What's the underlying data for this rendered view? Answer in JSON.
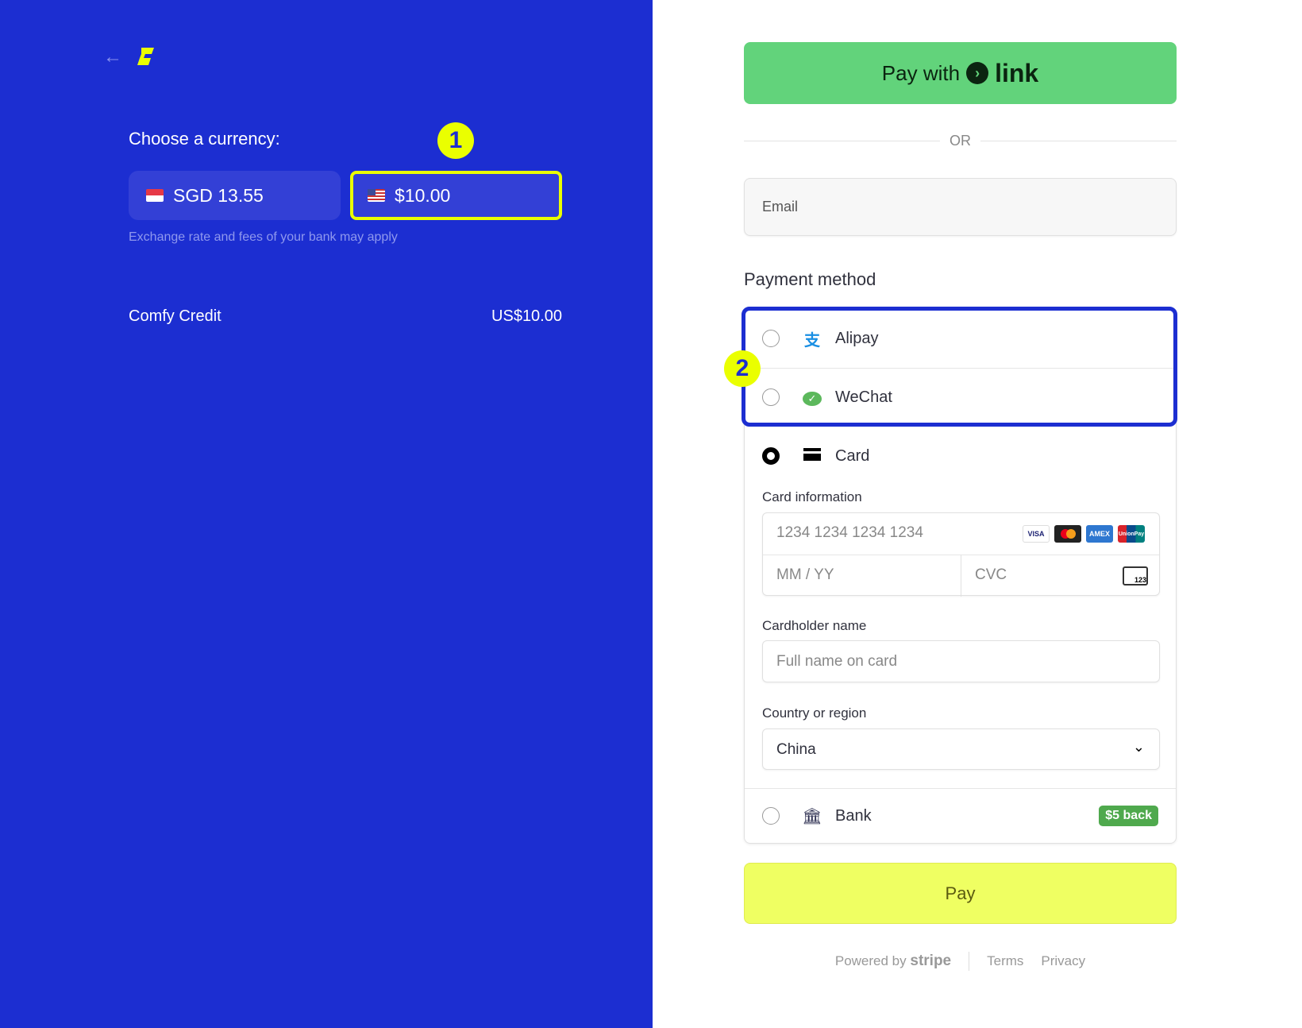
{
  "left": {
    "title": "Choose a currency:",
    "currencies": [
      {
        "label": "SGD 13.55",
        "flag": "sg",
        "selected": false
      },
      {
        "label": "$10.00",
        "flag": "us",
        "selected": true
      }
    ],
    "note": "Exchange rate and fees of your bank may apply",
    "item": {
      "name": "Comfy Credit",
      "price": "US$10.00"
    }
  },
  "annotations": {
    "one": "1",
    "two": "2"
  },
  "right": {
    "link_prefix": "Pay with",
    "link_word": "link",
    "or": "OR",
    "email_placeholder": "Email",
    "payment_heading": "Payment method",
    "methods": [
      {
        "label": "Alipay",
        "icon": "alipay-icon"
      },
      {
        "label": "WeChat",
        "icon": "wechat-icon"
      },
      {
        "label": "Card",
        "icon": "card-icon",
        "selected": true
      },
      {
        "label": "Bank",
        "icon": "bank-icon",
        "badge": "$5 back"
      }
    ],
    "card": {
      "info_label": "Card information",
      "number_placeholder": "1234 1234 1234 1234",
      "brands": [
        "VISA",
        "MC",
        "AMEX",
        "UnionPay"
      ],
      "expiry_placeholder": "MM / YY",
      "cvc_placeholder": "CVC",
      "cvc_icon_text": "123",
      "holder_label": "Cardholder name",
      "holder_placeholder": "Full name on card",
      "country_label": "Country or region",
      "country_value": "China"
    },
    "pay": "Pay",
    "powered": "Powered by",
    "stripe": "stripe",
    "terms": "Terms",
    "privacy": "Privacy"
  },
  "colors": {
    "brand_blue": "#1c2ed1",
    "accent_yellow": "#eaff00",
    "link_green": "#62d37b"
  }
}
